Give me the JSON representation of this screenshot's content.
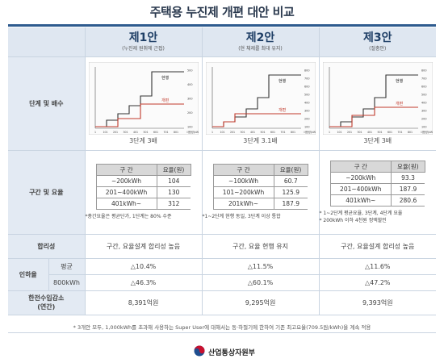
{
  "title": "주택용 누진제 개편 대안 비교",
  "row_labels": {
    "stage": "단계 및 배수",
    "section": "구간 및 요율",
    "rationality": "합리성",
    "hike": "인하율",
    "hike_avg": "평균",
    "hike_800": "800kWh",
    "revenue": "한전수입감소\n(연간)"
  },
  "plans": [
    {
      "name": "제1안",
      "sub": "(누진제 원취에 근접)",
      "stage_caption": "3단계 3배",
      "chart": {
        "now_label": "현행",
        "new_label": "개편",
        "x_axis_label": "사용량(kWh)",
        "x_ticks": [
          "1",
          "101",
          "201",
          "301",
          "401",
          "501",
          "601",
          "701",
          "801"
        ],
        "y_ticks": [
          "500",
          "400",
          "300",
          "200",
          "100"
        ]
      },
      "table": {
        "head": [
          "구  간",
          "요율(원)"
        ],
        "rows": [
          [
            "~200kWh",
            "104"
          ],
          [
            "201~400kWh",
            "130"
          ],
          [
            "401kWh~",
            "312"
          ]
        ]
      },
      "notes": [
        "*총간요율은 평균단가, 1단계는 80% 수준"
      ],
      "rationality": "구간, 요율설계 합리성 높음",
      "hike_avg": "△10.4%",
      "hike_800": "△46.3%",
      "revenue": "8,391억원"
    },
    {
      "name": "제2안",
      "sub": "(현 체제를 최대 유지)",
      "stage_caption": "3단계 3.1배",
      "chart": {
        "now_label": "현행",
        "new_label": "개편",
        "x_axis_label": "사용량(kWh)",
        "x_ticks": [
          "1",
          "101",
          "201",
          "301",
          "401",
          "501",
          "601",
          "701",
          "801"
        ],
        "y_ticks": [
          "800",
          "700",
          "600",
          "500",
          "400",
          "300",
          "200",
          "100"
        ]
      },
      "table": {
        "head": [
          "구  간",
          "요율(원)"
        ],
        "rows": [
          [
            "~100kWh",
            "60.7"
          ],
          [
            "101~200kWh",
            "125.9"
          ],
          [
            "201kWh~",
            "187.9"
          ]
        ]
      },
      "notes": [
        "*1~2단계 현행 동일, 3단계 이상 통합"
      ],
      "rationality": "구간, 요율 현행 유지",
      "hike_avg": "△11.5%",
      "hike_800": "△60.1%",
      "revenue": "9,295억원"
    },
    {
      "name": "제3안",
      "sub": "(절충안)",
      "stage_caption": "3단계 3배",
      "chart": {
        "now_label": "현행",
        "new_label": "개편",
        "x_axis_label": "사용량(kWh)",
        "x_ticks": [
          "1",
          "101",
          "201",
          "301",
          "401",
          "501",
          "601",
          "701",
          "801"
        ],
        "y_ticks": [
          "800",
          "700",
          "600",
          "500",
          "400",
          "300",
          "200",
          "100"
        ]
      },
      "table": {
        "head": [
          "구  간",
          "요율(원)"
        ],
        "rows": [
          [
            "~200kWh",
            "93.3"
          ],
          [
            "201~400kWh",
            "187.9"
          ],
          [
            "401kWh~",
            "280.6"
          ]
        ]
      },
      "notes": [
        "* 1~2단계 평균요율, 3단계, 4단계 요율",
        "* 200kWh 이하 4천원 정액할인"
      ],
      "rationality": "구간, 요율설계 합리성 높음",
      "hike_avg": "△11.6%",
      "hike_800": "△47.2%",
      "revenue": "9,393억원"
    }
  ],
  "footnote": "* 3개안 모두, 1,000kWh를 초과해 사용하는 Super User에 대해서는 동·하절기에 한하여 기존 최고요율(709.5원/kWh)을 계속 적용",
  "ministry": "산업통상자원부",
  "colors": {
    "header_blue": "#2e5b8f",
    "label_bg": "#e3eaf3",
    "current_line": "#333333",
    "new_line": "#c0392b"
  }
}
